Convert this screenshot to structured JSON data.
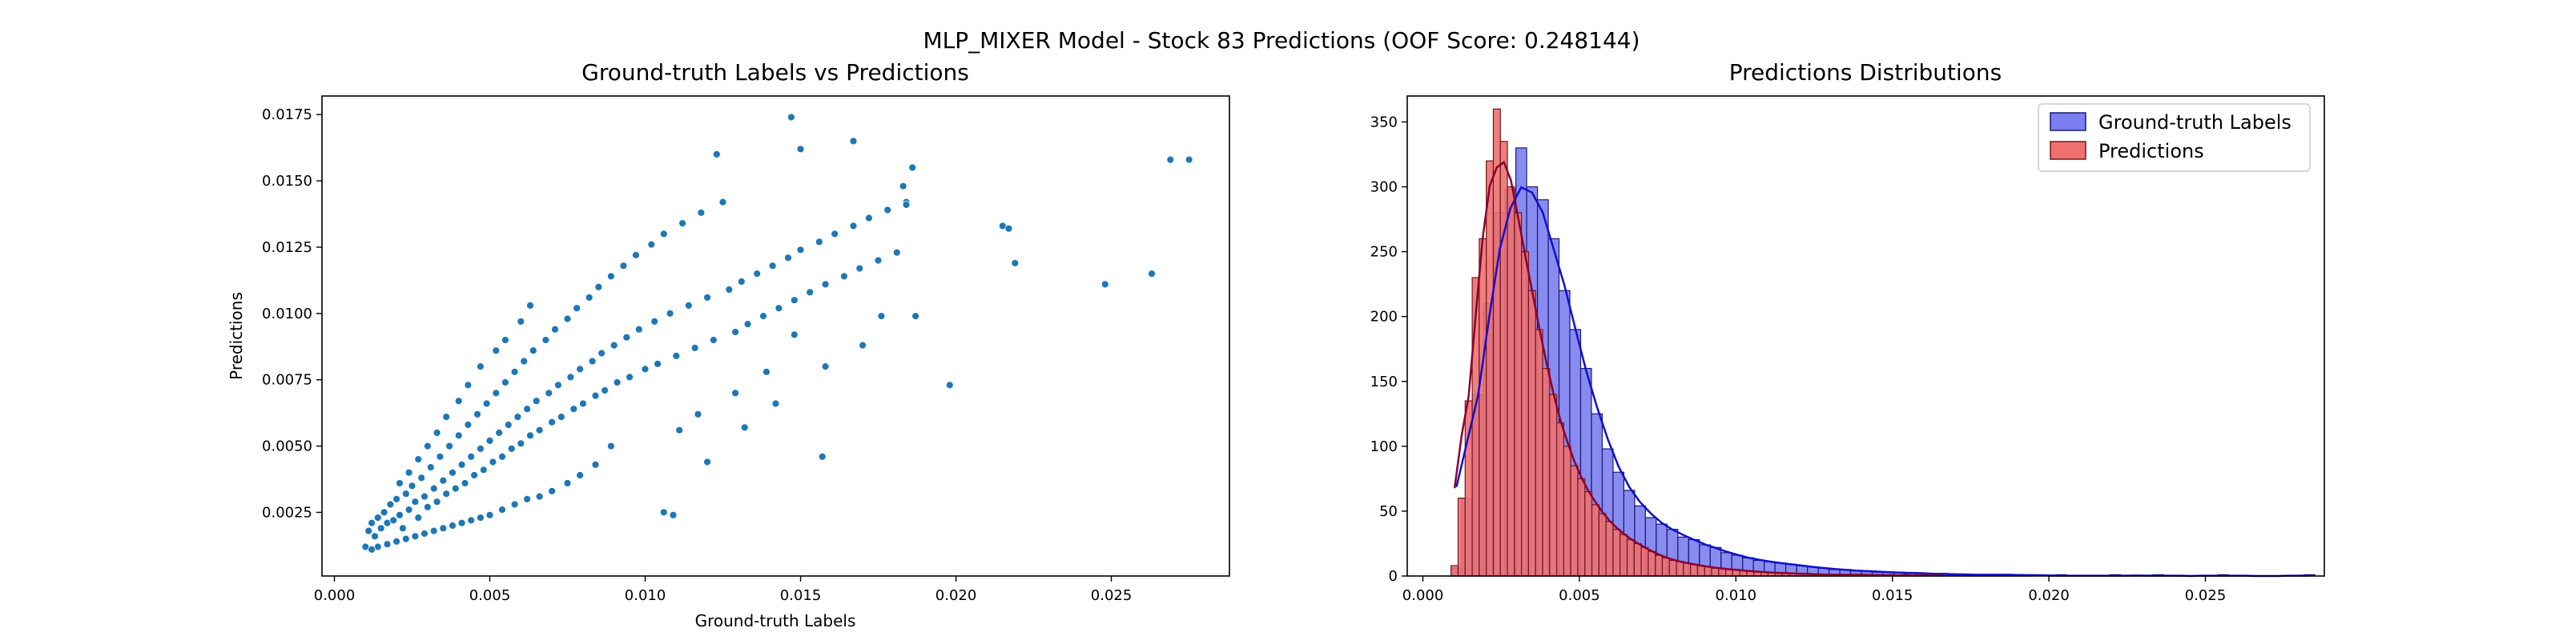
{
  "figure": {
    "suptitle": "MLP_MIXER Model - Stock 83 Predictions (OOF Score: 0.248144)"
  },
  "chart_data": [
    {
      "type": "scatter",
      "title": "Ground-truth Labels vs Predictions",
      "xlabel": "Ground-truth Labels",
      "ylabel": "Predictions",
      "xlim": [
        -0.0004,
        0.0288
      ],
      "ylim": [
        0.0001,
        0.0182
      ],
      "xticks": [
        0.0,
        0.005,
        0.01,
        0.015,
        0.02,
        0.025
      ],
      "xtick_labels": [
        "0.000",
        "0.005",
        "0.010",
        "0.015",
        "0.020",
        "0.025"
      ],
      "yticks": [
        0.0025,
        0.005,
        0.0075,
        0.01,
        0.0125,
        0.015,
        0.0175
      ],
      "ytick_labels": [
        "0.0025",
        "0.0050",
        "0.0075",
        "0.0100",
        "0.0125",
        "0.0150",
        "0.0175"
      ],
      "grid": false,
      "color": "#1f77b4",
      "points": [
        [
          0.001,
          0.0012
        ],
        [
          0.0011,
          0.0018
        ],
        [
          0.0012,
          0.0021
        ],
        [
          0.0013,
          0.0016
        ],
        [
          0.0014,
          0.0023
        ],
        [
          0.0015,
          0.0019
        ],
        [
          0.0016,
          0.0025
        ],
        [
          0.0017,
          0.0021
        ],
        [
          0.0018,
          0.0028
        ],
        [
          0.0019,
          0.0022
        ],
        [
          0.002,
          0.003
        ],
        [
          0.0021,
          0.0024
        ],
        [
          0.0022,
          0.0019
        ],
        [
          0.0023,
          0.0032
        ],
        [
          0.0024,
          0.0026
        ],
        [
          0.0025,
          0.0035
        ],
        [
          0.0026,
          0.0029
        ],
        [
          0.0027,
          0.0023
        ],
        [
          0.0028,
          0.0038
        ],
        [
          0.0029,
          0.0031
        ],
        [
          0.003,
          0.0027
        ],
        [
          0.0031,
          0.0042
        ],
        [
          0.0032,
          0.0034
        ],
        [
          0.0033,
          0.0029
        ],
        [
          0.0034,
          0.0046
        ],
        [
          0.0035,
          0.0037
        ],
        [
          0.0036,
          0.0032
        ],
        [
          0.0037,
          0.005
        ],
        [
          0.0038,
          0.004
        ],
        [
          0.0039,
          0.0034
        ],
        [
          0.004,
          0.0054
        ],
        [
          0.0041,
          0.0043
        ],
        [
          0.0042,
          0.0036
        ],
        [
          0.0043,
          0.0058
        ],
        [
          0.0044,
          0.0046
        ],
        [
          0.0045,
          0.0039
        ],
        [
          0.0046,
          0.0062
        ],
        [
          0.0047,
          0.0049
        ],
        [
          0.0048,
          0.0041
        ],
        [
          0.0049,
          0.0066
        ],
        [
          0.005,
          0.0052
        ],
        [
          0.0051,
          0.0044
        ],
        [
          0.0052,
          0.007
        ],
        [
          0.0053,
          0.0055
        ],
        [
          0.0054,
          0.0046
        ],
        [
          0.0055,
          0.0074
        ],
        [
          0.0056,
          0.0058
        ],
        [
          0.0057,
          0.0049
        ],
        [
          0.0058,
          0.0078
        ],
        [
          0.0059,
          0.0061
        ],
        [
          0.006,
          0.0051
        ],
        [
          0.0061,
          0.0082
        ],
        [
          0.0062,
          0.0064
        ],
        [
          0.0063,
          0.0054
        ],
        [
          0.0064,
          0.0086
        ],
        [
          0.0065,
          0.0067
        ],
        [
          0.0066,
          0.0056
        ],
        [
          0.0068,
          0.009
        ],
        [
          0.0069,
          0.007
        ],
        [
          0.007,
          0.0059
        ],
        [
          0.0071,
          0.0094
        ],
        [
          0.0072,
          0.0073
        ],
        [
          0.0073,
          0.0061
        ],
        [
          0.0075,
          0.0098
        ],
        [
          0.0076,
          0.0076
        ],
        [
          0.0077,
          0.0064
        ],
        [
          0.0078,
          0.0102
        ],
        [
          0.0079,
          0.0079
        ],
        [
          0.008,
          0.0066
        ],
        [
          0.0082,
          0.0106
        ],
        [
          0.0083,
          0.0082
        ],
        [
          0.0084,
          0.0069
        ],
        [
          0.0085,
          0.011
        ],
        [
          0.0086,
          0.0085
        ],
        [
          0.0087,
          0.0071
        ],
        [
          0.0089,
          0.0114
        ],
        [
          0.009,
          0.0088
        ],
        [
          0.0091,
          0.0074
        ],
        [
          0.0093,
          0.0118
        ],
        [
          0.0094,
          0.0091
        ],
        [
          0.0095,
          0.0076
        ],
        [
          0.0097,
          0.0122
        ],
        [
          0.0098,
          0.0094
        ],
        [
          0.01,
          0.0079
        ],
        [
          0.0102,
          0.0126
        ],
        [
          0.0103,
          0.0097
        ],
        [
          0.0104,
          0.0081
        ],
        [
          0.0106,
          0.013
        ],
        [
          0.0108,
          0.01
        ],
        [
          0.011,
          0.0084
        ],
        [
          0.0112,
          0.0134
        ],
        [
          0.0114,
          0.0103
        ],
        [
          0.0116,
          0.0087
        ],
        [
          0.0118,
          0.0138
        ],
        [
          0.012,
          0.0106
        ],
        [
          0.0122,
          0.009
        ],
        [
          0.0125,
          0.0142
        ],
        [
          0.0127,
          0.0109
        ],
        [
          0.0129,
          0.0093
        ],
        [
          0.0131,
          0.0112
        ],
        [
          0.0133,
          0.0096
        ],
        [
          0.0136,
          0.0115
        ],
        [
          0.0138,
          0.0099
        ],
        [
          0.0141,
          0.0118
        ],
        [
          0.0143,
          0.0102
        ],
        [
          0.0146,
          0.0121
        ],
        [
          0.0148,
          0.0105
        ],
        [
          0.015,
          0.0124
        ],
        [
          0.0153,
          0.0108
        ],
        [
          0.0156,
          0.0127
        ],
        [
          0.0158,
          0.0111
        ],
        [
          0.0161,
          0.013
        ],
        [
          0.0164,
          0.0114
        ],
        [
          0.0167,
          0.0133
        ],
        [
          0.0169,
          0.0117
        ],
        [
          0.0172,
          0.0136
        ],
        [
          0.0175,
          0.012
        ],
        [
          0.0178,
          0.0139
        ],
        [
          0.0181,
          0.0123
        ],
        [
          0.0184,
          0.0142
        ],
        [
          0.0186,
          0.0155
        ],
        [
          0.0187,
          0.0099
        ],
        [
          0.0147,
          0.0174
        ],
        [
          0.015,
          0.0162
        ],
        [
          0.0167,
          0.0165
        ],
        [
          0.0123,
          0.016
        ],
        [
          0.0183,
          0.0148
        ],
        [
          0.0184,
          0.0141
        ],
        [
          0.0215,
          0.0133
        ],
        [
          0.0217,
          0.0132
        ],
        [
          0.0219,
          0.0119
        ],
        [
          0.0198,
          0.0073
        ],
        [
          0.0248,
          0.0111
        ],
        [
          0.0263,
          0.0115
        ],
        [
          0.0269,
          0.0158
        ],
        [
          0.0275,
          0.0158
        ],
        [
          0.0157,
          0.0046
        ],
        [
          0.0106,
          0.0025
        ],
        [
          0.0109,
          0.0024
        ],
        [
          0.0132,
          0.0057
        ],
        [
          0.012,
          0.0044
        ],
        [
          0.0142,
          0.0066
        ],
        [
          0.017,
          0.0088
        ],
        [
          0.0176,
          0.0099
        ],
        [
          0.0158,
          0.008
        ],
        [
          0.0148,
          0.0092
        ],
        [
          0.0139,
          0.0078
        ],
        [
          0.0129,
          0.007
        ],
        [
          0.0117,
          0.0062
        ],
        [
          0.0111,
          0.0056
        ],
        [
          0.0089,
          0.005
        ],
        [
          0.0084,
          0.0043
        ],
        [
          0.0079,
          0.0039
        ],
        [
          0.0075,
          0.0036
        ],
        [
          0.007,
          0.0033
        ],
        [
          0.0066,
          0.0031
        ],
        [
          0.0062,
          0.003
        ],
        [
          0.0058,
          0.0028
        ],
        [
          0.0054,
          0.0026
        ],
        [
          0.005,
          0.0024
        ],
        [
          0.0047,
          0.0023
        ],
        [
          0.0044,
          0.0022
        ],
        [
          0.0041,
          0.0021
        ],
        [
          0.0038,
          0.002
        ],
        [
          0.0035,
          0.0019
        ],
        [
          0.0032,
          0.0018
        ],
        [
          0.0029,
          0.0017
        ],
        [
          0.0026,
          0.0016
        ],
        [
          0.0023,
          0.0015
        ],
        [
          0.002,
          0.0014
        ],
        [
          0.0017,
          0.0013
        ],
        [
          0.0014,
          0.0012
        ],
        [
          0.0012,
          0.0011
        ],
        [
          0.0047,
          0.008
        ],
        [
          0.0052,
          0.0086
        ],
        [
          0.0055,
          0.009
        ],
        [
          0.006,
          0.0097
        ],
        [
          0.0063,
          0.0103
        ],
        [
          0.0043,
          0.0073
        ],
        [
          0.004,
          0.0067
        ],
        [
          0.0036,
          0.0061
        ],
        [
          0.0033,
          0.0055
        ],
        [
          0.003,
          0.005
        ],
        [
          0.0027,
          0.0045
        ],
        [
          0.0024,
          0.004
        ],
        [
          0.0021,
          0.0036
        ]
      ]
    },
    {
      "type": "bar",
      "subtype": "histogram",
      "title": "Predictions Distributions",
      "xlim": [
        -0.0005,
        0.0288
      ],
      "ylim": [
        0,
        370
      ],
      "xticks": [
        0.0,
        0.005,
        0.01,
        0.015,
        0.02,
        0.025
      ],
      "xtick_labels": [
        "0.000",
        "0.005",
        "0.010",
        "0.015",
        "0.020",
        "0.025"
      ],
      "yticks": [
        0,
        50,
        100,
        150,
        200,
        250,
        300,
        350
      ],
      "ytick_labels": [
        "0",
        "50",
        "100",
        "150",
        "200",
        "250",
        "300",
        "350"
      ],
      "legend_position": "upper-right",
      "series": [
        {
          "name": "Ground-truth Labels",
          "fill": "#7b7ff0",
          "edge": "#1a1a6e",
          "line": "#1010d0",
          "bin_start": 0.0009,
          "bin_width": 0.000345,
          "counts": [
            6,
            60,
            140,
            210,
            280,
            298,
            330,
            300,
            290,
            260,
            220,
            190,
            160,
            125,
            98,
            80,
            66,
            54,
            45,
            40,
            36,
            30,
            28,
            24,
            22,
            18,
            16,
            14,
            12,
            11,
            10,
            9,
            8,
            7,
            6,
            5,
            5,
            4,
            4,
            3,
            3,
            3,
            2,
            2,
            2,
            2,
            1,
            1,
            1,
            1,
            1,
            1,
            1,
            1,
            0,
            0,
            1,
            0,
            0,
            0,
            0,
            1,
            0,
            0,
            0,
            1,
            0,
            0,
            0,
            0,
            0,
            1,
            0,
            0,
            0,
            0,
            0,
            0,
            0,
            1
          ]
        },
        {
          "name": "Predictions",
          "fill": "#f07070",
          "edge": "#6e1a1a",
          "line": "#8a0030",
          "bin_start": 0.0009,
          "bin_width": 0.000225,
          "counts": [
            8,
            60,
            135,
            230,
            260,
            320,
            360,
            335,
            300,
            280,
            250,
            220,
            190,
            160,
            140,
            118,
            100,
            85,
            75,
            65,
            55,
            48,
            42,
            36,
            32,
            28,
            25,
            22,
            19,
            16,
            14,
            12,
            11,
            10,
            9,
            8,
            7,
            6,
            6,
            5,
            5,
            4,
            4,
            3,
            3,
            3,
            2,
            2,
            2,
            2,
            2,
            1,
            1,
            1,
            1,
            1,
            1,
            1,
            1,
            1,
            1,
            0,
            1,
            0,
            1,
            0,
            1,
            0,
            0,
            1
          ]
        }
      ]
    }
  ]
}
